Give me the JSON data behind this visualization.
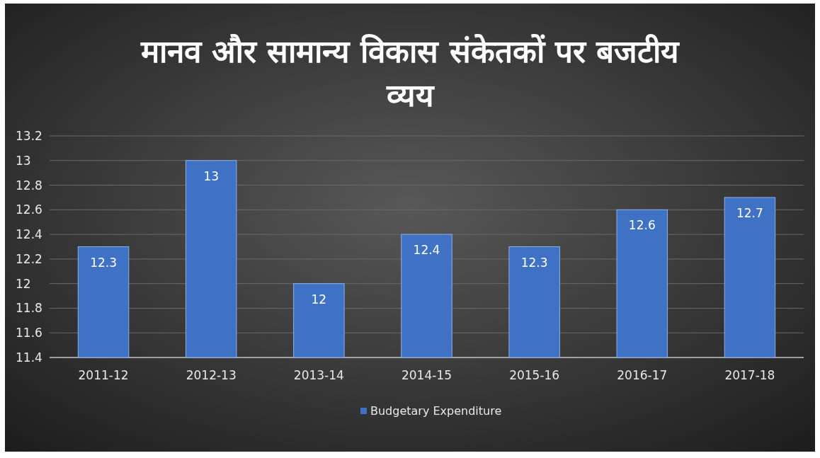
{
  "chart_data": {
    "type": "bar",
    "title": "मानव और सामान्य विकास संकेतकों पर बजटीय व्यय",
    "categories": [
      "2011-12",
      "2012-13",
      "2013-14",
      "2014-15",
      "2015-16",
      "2016-17",
      "2017-18"
    ],
    "series": [
      {
        "name": "Budgetary Expenditure",
        "color": "#3f72c4",
        "values": [
          12.3,
          13,
          12,
          12.4,
          12.3,
          12.6,
          12.7
        ]
      }
    ],
    "ylim": [
      11.4,
      13.2
    ],
    "yticks": [
      "11.4",
      "11.6",
      "11.8",
      "12",
      "12.2",
      "12.4",
      "12.6",
      "12.8",
      "13",
      "13.2"
    ],
    "grid": "y",
    "legend": "bottom",
    "data_labels": true
  }
}
